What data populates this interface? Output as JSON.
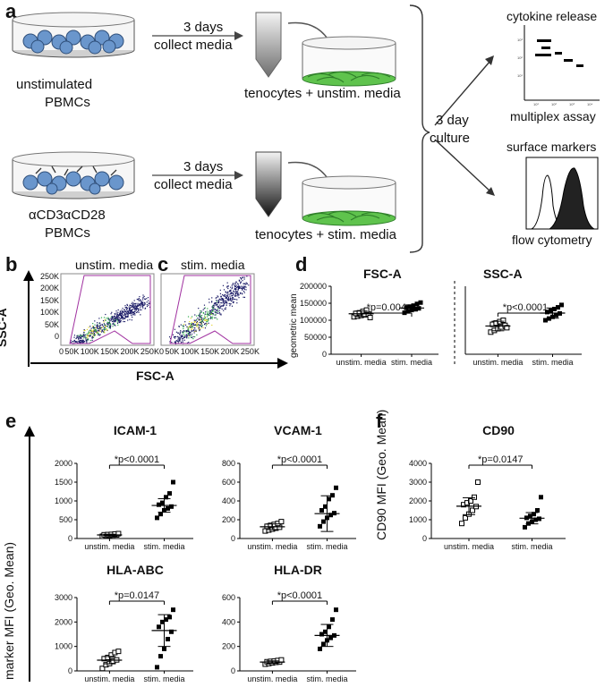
{
  "panel_a": {
    "letter": "a",
    "step1": {
      "line1": "3 days",
      "line2": "collect media"
    },
    "step2": {
      "line1": "3 days",
      "line2": "collect media"
    },
    "source_top": {
      "line1": "unstimulated",
      "line2": "PBMCs"
    },
    "source_bottom": {
      "line1": "αCD3αCD28",
      "line2": "PBMCs"
    },
    "dish_top_label": "tenocytes + unstim. media",
    "dish_bottom_label": "tenocytes + stim. media",
    "culture": {
      "line1": "3 day",
      "line2": "culture"
    },
    "cytokine_title": "cytokine release",
    "cytokine_caption": "multiplex assay",
    "surface_title": "surface markers",
    "surface_caption": "flow cytometry"
  },
  "panel_b": {
    "letter": "b",
    "title": "unstim. media",
    "y_axis_label": "SSC-A",
    "y_ticks": [
      "250K",
      "200K",
      "150K",
      "100K",
      "50K",
      "0"
    ],
    "x_ticks": [
      "0",
      "50K",
      "100K",
      "150K",
      "200K",
      "250K"
    ]
  },
  "panel_c": {
    "letter": "c",
    "title": "stim. media",
    "x_ticks": [
      "0",
      "50K",
      "100K",
      "150K",
      "200K",
      "250K"
    ]
  },
  "fsc_label": "FSC-A",
  "panel_d": {
    "letter": "d",
    "left_title": "FSC-A",
    "right_title": "SSC-A"
  },
  "panel_e": {
    "letter": "e",
    "y_axis_label": "marker MFI (Geo. Mean)"
  },
  "panel_f": {
    "letter": "f",
    "y_axis_label": "CD90 MFI (Geo. Mean)"
  },
  "chart_data": [
    {
      "id": "d-fsc",
      "type": "scatter",
      "title": "FSC-A",
      "ylabel": "geometric mean",
      "ylim": [
        0,
        200000
      ],
      "yticks": [
        "200000",
        "150000",
        "100000",
        "50000",
        "0"
      ],
      "categories": [
        "unstim. media",
        "stim. media"
      ],
      "annotation": "*p=0.004",
      "series": [
        {
          "name": "unstim. media",
          "values": [
            110000,
            112000,
            114000,
            116000,
            118000,
            120000,
            122000,
            126000,
            130000,
            108000
          ]
        },
        {
          "name": "stim. media",
          "values": [
            122000,
            126000,
            130000,
            133000,
            135000,
            137000,
            140000,
            143000,
            148000,
            152000
          ]
        }
      ],
      "summary": [
        {
          "mean": 119000,
          "sd": 8000
        },
        {
          "mean": 136000,
          "sd": 9000
        }
      ]
    },
    {
      "id": "d-ssc",
      "type": "scatter",
      "title": "SSC-A",
      "ylim": [
        0,
        200000
      ],
      "categories": [
        "unstim. media",
        "stim. media"
      ],
      "annotation": "*p<0.0001",
      "series": [
        {
          "name": "unstim. media",
          "values": [
            65000,
            70000,
            75000,
            80000,
            85000,
            88000,
            92000,
            96000,
            100000,
            78000
          ]
        },
        {
          "name": "stim. media",
          "values": [
            100000,
            105000,
            110000,
            115000,
            120000,
            124000,
            128000,
            133000,
            138000,
            145000
          ]
        }
      ],
      "summary": [
        {
          "mean": 83000,
          "sd": 14000
        },
        {
          "mean": 121000,
          "sd": 15000
        }
      ]
    },
    {
      "id": "e-icam",
      "type": "scatter",
      "title": "ICAM-1",
      "ylim": [
        0,
        2000
      ],
      "yticks": [
        "2000",
        "1500",
        "1000",
        "500",
        "0"
      ],
      "categories": [
        "unstim. media",
        "stim. media"
      ],
      "annotation": "*p<0.0001",
      "series": [
        {
          "name": "unstim. media",
          "values": [
            60,
            70,
            80,
            90,
            95,
            100,
            105,
            110,
            120,
            130
          ]
        },
        {
          "name": "stim. media",
          "values": [
            550,
            650,
            750,
            800,
            850,
            900,
            950,
            1100,
            1200,
            1500
          ]
        }
      ],
      "summary": [
        {
          "mean": 95,
          "sd": 20
        },
        {
          "mean": 880,
          "sd": 180
        }
      ]
    },
    {
      "id": "e-vcam",
      "type": "scatter",
      "title": "VCAM-1",
      "ylim": [
        0,
        800
      ],
      "yticks": [
        "800",
        "600",
        "400",
        "200",
        "0"
      ],
      "categories": [
        "unstim. media",
        "stim. media"
      ],
      "annotation": "*p<0.0001",
      "series": [
        {
          "name": "unstim. media",
          "values": [
            80,
            90,
            100,
            110,
            120,
            130,
            140,
            150,
            160,
            180
          ]
        },
        {
          "name": "stim. media",
          "values": [
            130,
            180,
            220,
            250,
            270,
            300,
            340,
            420,
            460,
            540
          ]
        }
      ],
      "summary": [
        {
          "mean": 125,
          "sd": 30
        },
        {
          "mean": 265,
          "sd": 190
        }
      ]
    },
    {
      "id": "e-hla-abc",
      "type": "scatter",
      "title": "HLA-ABC",
      "ylim": [
        0,
        3000
      ],
      "yticks": [
        "3000",
        "2000",
        "1000",
        "0"
      ],
      "categories": [
        "unstim. media",
        "stim. media"
      ],
      "annotation": "*p=0.0147",
      "series": [
        {
          "name": "unstim. media",
          "values": [
            100,
            250,
            300,
            400,
            450,
            500,
            550,
            650,
            750,
            800
          ]
        },
        {
          "name": "stim. media",
          "values": [
            150,
            600,
            900,
            1300,
            1600,
            1800,
            2000,
            2100,
            2200,
            2500
          ]
        }
      ],
      "summary": [
        {
          "mean": 440,
          "sd": 150
        },
        {
          "mean": 1650,
          "sd": 650
        }
      ]
    },
    {
      "id": "e-hla-dr",
      "type": "scatter",
      "title": "HLA-DR",
      "ylim": [
        0,
        600
      ],
      "yticks": [
        "600",
        "400",
        "200",
        "0"
      ],
      "categories": [
        "unstim. media",
        "stim. media"
      ],
      "annotation": "*p<0.0001",
      "series": [
        {
          "name": "unstim. media",
          "values": [
            55,
            60,
            65,
            70,
            72,
            75,
            78,
            80,
            85,
            90
          ]
        },
        {
          "name": "stim. media",
          "values": [
            180,
            220,
            250,
            270,
            290,
            300,
            320,
            360,
            420,
            500
          ]
        }
      ],
      "summary": [
        {
          "mean": 72,
          "sd": 10
        },
        {
          "mean": 290,
          "sd": 90
        }
      ]
    },
    {
      "id": "f-cd90",
      "type": "scatter",
      "title": "CD90",
      "ylim": [
        0,
        4000
      ],
      "yticks": [
        "4000",
        "3000",
        "2000",
        "1000",
        "0"
      ],
      "categories": [
        "unstim. media",
        "stim. media"
      ],
      "annotation": "*p=0.0147",
      "series": [
        {
          "name": "unstim. media",
          "values": [
            800,
            1100,
            1300,
            1500,
            1700,
            1800,
            1900,
            2000,
            2200,
            3000
          ]
        },
        {
          "name": "stim. media",
          "values": [
            600,
            800,
            900,
            1000,
            1050,
            1100,
            1200,
            1300,
            1500,
            2200
          ]
        }
      ],
      "summary": [
        {
          "mean": 1720,
          "sd": 450
        },
        {
          "mean": 1080,
          "sd": 300
        }
      ]
    }
  ]
}
